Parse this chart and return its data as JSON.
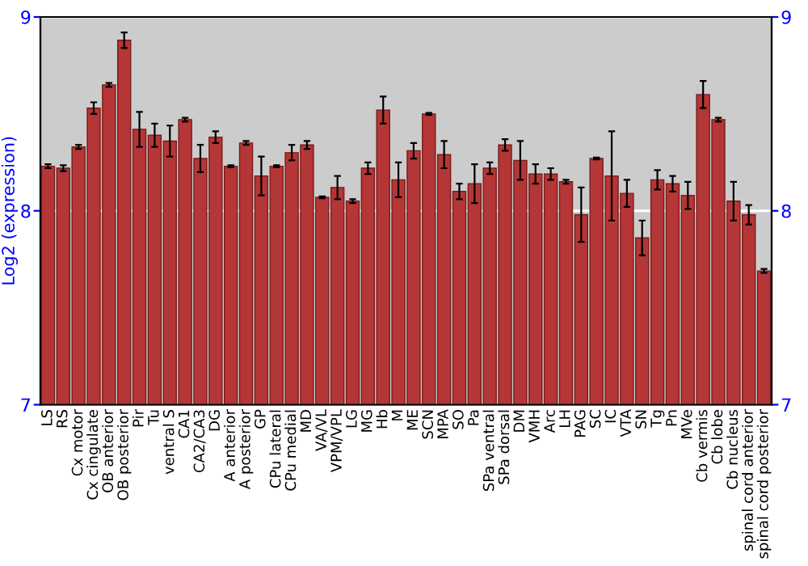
{
  "chart_data": {
    "type": "bar",
    "ylabel": "Log2 (expression)",
    "categories": [
      "LS",
      "RS",
      "Cx motor",
      "Cx cingulate",
      "OB anterior",
      "OB posterior",
      "Pir",
      "Tu",
      "ventral S",
      "CA1",
      "CA2/CA3",
      "DG",
      "A anterior",
      "A posterior",
      "GP",
      "CPu lateral",
      "CPu medial",
      "MD",
      "VA/VL",
      "VPM/VPL",
      "LG",
      "MG",
      "Hb",
      "M",
      "ME",
      "SCN",
      "MPA",
      "SO",
      "Pa",
      "SPa ventral",
      "SPa dorsal",
      "DM",
      "VMH",
      "Arc",
      "LH",
      "PAG",
      "SC",
      "IC",
      "VTA",
      "SN",
      "Tg",
      "Pn",
      "MVe",
      "Cb vermis",
      "Cb lobe",
      "Cb nucleus",
      "spinal cord anterior",
      "spinal cord posterior"
    ],
    "values": [
      8.23,
      8.22,
      8.33,
      8.53,
      8.65,
      8.88,
      8.42,
      8.39,
      8.36,
      8.47,
      8.27,
      8.38,
      8.23,
      8.35,
      8.18,
      8.23,
      8.3,
      8.34,
      8.07,
      8.12,
      8.05,
      8.22,
      8.52,
      8.16,
      8.31,
      8.5,
      8.29,
      8.1,
      8.14,
      8.22,
      8.34,
      8.26,
      8.19,
      8.19,
      8.15,
      7.98,
      8.27,
      8.18,
      8.09,
      7.86,
      8.16,
      8.14,
      8.08,
      8.6,
      8.47,
      8.05,
      7.98,
      7.69
    ],
    "errors": [
      0.01,
      0.015,
      0.01,
      0.03,
      0.01,
      0.04,
      0.09,
      0.06,
      0.08,
      0.01,
      0.07,
      0.03,
      0.005,
      0.01,
      0.1,
      0.005,
      0.04,
      0.02,
      0.005,
      0.06,
      0.01,
      0.03,
      0.07,
      0.09,
      0.04,
      0.005,
      0.07,
      0.04,
      0.1,
      0.03,
      0.03,
      0.1,
      0.05,
      0.03,
      0.01,
      0.14,
      0.005,
      0.23,
      0.07,
      0.09,
      0.05,
      0.04,
      0.07,
      0.07,
      0.01,
      0.1,
      0.05,
      0.01
    ],
    "color": "#b53636",
    "ylim": [
      7,
      9
    ],
    "yticks": [
      7,
      8,
      9
    ],
    "y2lim": [
      7,
      9
    ],
    "y2ticks": [
      7,
      8,
      9
    ],
    "grid": "y"
  }
}
